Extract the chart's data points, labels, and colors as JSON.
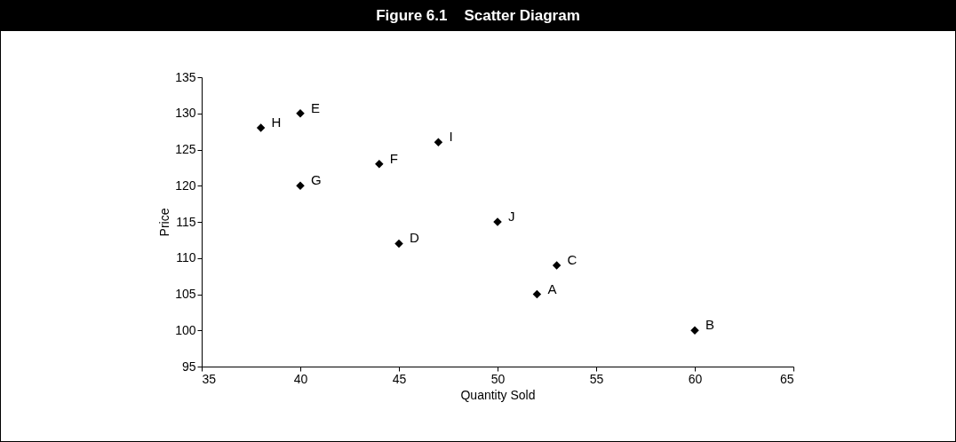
{
  "chart_data": {
    "type": "scatter",
    "title": "Figure 6.1    Scatter Diagram",
    "xlabel": "Quantity Sold",
    "ylabel": "Price",
    "x": [
      52,
      60,
      53,
      45,
      40,
      44,
      40,
      38,
      47,
      50
    ],
    "series": [
      {
        "color": "#000000",
        "values": [
          105,
          100,
          109,
          112,
          130,
          123,
          120,
          128,
          126,
          115
        ]
      }
    ],
    "annotations": [
      {
        "text": "A",
        "x": 52,
        "y": 105
      },
      {
        "text": "B",
        "x": 60,
        "y": 100
      },
      {
        "text": "C",
        "x": 53,
        "y": 109
      },
      {
        "text": "D",
        "x": 45,
        "y": 112
      },
      {
        "text": "E",
        "x": 40,
        "y": 130
      },
      {
        "text": "F",
        "x": 44,
        "y": 123
      },
      {
        "text": "G",
        "x": 40,
        "y": 120
      },
      {
        "text": "H",
        "x": 38,
        "y": 128
      },
      {
        "text": "I",
        "x": 47,
        "y": 126
      },
      {
        "text": "J",
        "x": 50,
        "y": 115
      }
    ],
    "xlim": [
      35,
      65
    ],
    "xticks": [
      35,
      40,
      45,
      50,
      55,
      60,
      65
    ],
    "ylim": [
      95,
      135
    ],
    "yticks": [
      95,
      100,
      105,
      110,
      115,
      120,
      125,
      130,
      135
    ],
    "grid": false,
    "marker": "diamond"
  }
}
